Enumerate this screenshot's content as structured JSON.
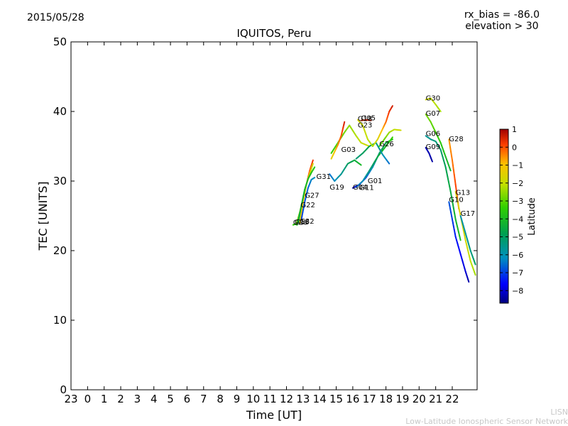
{
  "header": {
    "date": "2015/05/28",
    "rx_bias": "rx_bias = -86.0",
    "elevation": "elevation > 30"
  },
  "footer": {
    "org_short": "LISN",
    "org_long": "Low-Latitude Ionospheric Sensor Network"
  },
  "chart_data": {
    "type": "scatter",
    "title": "IQUITOS, Peru",
    "xlabel": "Time [UT]",
    "ylabel": "TEC [UNITS]",
    "xlim": [
      23,
      47.5
    ],
    "ylim": [
      0,
      50
    ],
    "xticks": [
      23,
      24,
      25,
      26,
      27,
      28,
      29,
      30,
      31,
      32,
      33,
      34,
      35,
      36,
      37,
      38,
      39,
      40,
      41,
      42,
      43,
      44,
      45,
      46
    ],
    "xtick_labels": [
      "23",
      "0",
      "1",
      "2",
      "3",
      "4",
      "5",
      "6",
      "7",
      "8",
      "9",
      "10",
      "11",
      "12",
      "13",
      "14",
      "15",
      "16",
      "17",
      "18",
      "19",
      "20",
      "21",
      "22"
    ],
    "yticks": [
      0,
      10,
      20,
      30,
      40,
      50
    ],
    "grid": false,
    "colorbar": {
      "label": "Latitude",
      "min": -8.7,
      "max": 1.0,
      "ticks": [
        1,
        0,
        -1,
        -2,
        -3,
        -4,
        -5,
        -6,
        -7,
        -8
      ],
      "tick_labels": [
        "1",
        "0",
        "−1",
        "−2",
        "−3",
        "−4",
        "−5",
        "−6",
        "−7",
        "−8"
      ]
    },
    "series": [
      {
        "name": "G20",
        "label_at": [
          36.4,
          23.7
        ],
        "points": [
          [
            36.4,
            23.7,
            -3.5
          ],
          [
            36.5,
            23.8,
            -3.5
          ],
          [
            36.6,
            23.8,
            -3.6
          ]
        ]
      },
      {
        "name": "G16",
        "label_at": [
          36.5,
          23.8
        ],
        "points": [
          [
            36.55,
            23.8,
            -4.0
          ],
          [
            36.65,
            23.7,
            -4.1
          ]
        ]
      },
      {
        "name": "G32",
        "label_at": [
          36.8,
          23.9
        ],
        "points": [
          [
            36.8,
            24.0,
            -1.5
          ],
          [
            36.9,
            25.5,
            -1.2
          ],
          [
            37.0,
            27.0,
            -0.9
          ],
          [
            37.2,
            29.5,
            -0.5
          ],
          [
            37.4,
            31.5,
            -0.1
          ],
          [
            37.6,
            33.0,
            0.3
          ]
        ]
      },
      {
        "name": "G22",
        "label_at": [
          36.85,
          26.2
        ],
        "points": [
          [
            36.6,
            23.8,
            -3.0
          ],
          [
            36.8,
            25.5,
            -2.8
          ],
          [
            37.0,
            27.5,
            -2.5
          ],
          [
            37.2,
            29.5,
            -2.2
          ],
          [
            37.4,
            31.0,
            -2.0
          ],
          [
            37.6,
            32.5,
            -1.8
          ]
        ]
      },
      {
        "name": "G27",
        "label_at": [
          37.1,
          27.6
        ],
        "points": [
          [
            36.7,
            24.0,
            -4.6
          ],
          [
            36.9,
            26.5,
            -4.4
          ],
          [
            37.1,
            28.8,
            -4.2
          ],
          [
            37.3,
            30.3,
            -4.0
          ],
          [
            37.5,
            31.2,
            -3.8
          ],
          [
            37.7,
            32.0,
            -3.6
          ]
        ]
      },
      {
        "name": "G31",
        "label_at": [
          37.8,
          30.3
        ],
        "points": [
          [
            36.9,
            24.5,
            -7.0
          ],
          [
            37.1,
            27.0,
            -6.8
          ],
          [
            37.3,
            29.0,
            -6.6
          ],
          [
            37.5,
            30.2,
            -6.3
          ],
          [
            37.7,
            30.5,
            -6.1
          ]
        ]
      },
      {
        "name": "G19",
        "label_at": [
          38.6,
          28.8
        ],
        "points": [
          [
            38.6,
            31.0,
            -6.5
          ],
          [
            38.9,
            30.0,
            -6.2
          ],
          [
            39.3,
            31.0,
            -5.6
          ],
          [
            39.7,
            32.5,
            -5.0
          ],
          [
            40.1,
            33.0,
            -4.5
          ],
          [
            40.5,
            32.3,
            -4.0
          ]
        ]
      },
      {
        "name": "G03",
        "label_at": [
          39.3,
          34.2
        ],
        "points": [
          [
            38.7,
            34.0,
            -3.4
          ],
          [
            39.1,
            35.5,
            -3.1
          ],
          [
            39.5,
            37.0,
            -2.8
          ],
          [
            39.8,
            38.0,
            -2.5
          ],
          [
            40.2,
            36.5,
            -2.2
          ],
          [
            40.5,
            35.5,
            -2.0
          ],
          [
            41.0,
            35.0,
            -1.8
          ]
        ]
      },
      {
        "name": "G23",
        "label_at": [
          40.3,
          37.7
        ],
        "points": [
          [
            38.7,
            33.2,
            -1.5
          ],
          [
            38.9,
            34.2,
            -1.0
          ],
          [
            39.1,
            35.2,
            -0.5
          ],
          [
            39.3,
            36.5,
            0.0
          ],
          [
            39.5,
            38.5,
            0.6
          ]
        ]
      },
      {
        "name": "G04",
        "label_at": [
          40.0,
          28.8
        ],
        "points": [
          [
            40.0,
            29.0,
            -8.2
          ],
          [
            40.4,
            29.5,
            -7.6
          ],
          [
            40.8,
            30.5,
            -6.8
          ],
          [
            41.2,
            32.0,
            -6.0
          ],
          [
            41.6,
            34.0,
            -5.2
          ],
          [
            42.0,
            35.5,
            -4.5
          ],
          [
            42.4,
            36.0,
            -3.6
          ]
        ]
      },
      {
        "name": "G11",
        "label_at": [
          40.4,
          28.7
        ],
        "points": [
          [
            40.2,
            29.1,
            -6.6
          ],
          [
            40.6,
            30.0,
            -6.0
          ],
          [
            41.0,
            31.5,
            -5.3
          ],
          [
            41.5,
            33.5,
            -4.6
          ],
          [
            42.0,
            35.0,
            -3.9
          ],
          [
            42.4,
            36.3,
            -3.2
          ]
        ]
      },
      {
        "name": "G01",
        "label_at": [
          40.9,
          29.7
        ],
        "points": [
          [
            40.2,
            33.2,
            -5.3
          ],
          [
            40.6,
            34.0,
            -5.0
          ],
          [
            41.0,
            35.0,
            -4.7
          ],
          [
            41.4,
            35.5,
            -5.3
          ],
          [
            41.8,
            33.8,
            -6.0
          ],
          [
            42.2,
            32.5,
            -6.6
          ]
        ]
      },
      {
        "name": "G18",
        "label_at": [
          40.3,
          38.6
        ],
        "points": [
          [
            40.3,
            38.8,
            -1.7
          ],
          [
            40.6,
            38.0,
            -1.9
          ],
          [
            40.9,
            36.0,
            -2.1
          ],
          [
            41.2,
            35.0,
            -2.3
          ],
          [
            41.5,
            36.0,
            -1.6
          ],
          [
            41.8,
            37.5,
            -0.8
          ],
          [
            42.0,
            38.5,
            -0.2
          ],
          [
            42.2,
            40.0,
            0.3
          ],
          [
            42.4,
            40.8,
            0.6
          ]
        ]
      },
      {
        "name": "G05",
        "label_at": [
          40.5,
          38.7
        ],
        "points": [
          [
            40.5,
            38.7,
            0.5
          ],
          [
            40.8,
            38.8,
            0.5
          ],
          [
            41.1,
            38.7,
            0.6
          ]
        ]
      },
      {
        "name": "G26",
        "label_at": [
          41.6,
          35.0
        ],
        "points": [
          [
            41.6,
            35.0,
            -3.2
          ],
          [
            41.9,
            36.0,
            -2.8
          ],
          [
            42.2,
            37.0,
            -2.4
          ],
          [
            42.5,
            37.4,
            -2.1
          ],
          [
            42.9,
            37.3,
            -1.8
          ]
        ]
      },
      {
        "name": "G30",
        "label_at": [
          44.4,
          41.6
        ],
        "points": [
          [
            44.4,
            41.7,
            -1.8
          ],
          [
            44.7,
            41.9,
            -2.0
          ],
          [
            45.0,
            41.0,
            -2.2
          ],
          [
            45.3,
            40.0,
            -2.4
          ]
        ]
      },
      {
        "name": "G07",
        "label_at": [
          44.4,
          39.4
        ],
        "points": [
          [
            44.4,
            39.6,
            -2.7
          ],
          [
            44.7,
            38.5,
            -2.9
          ],
          [
            45.0,
            37.0,
            -3.2
          ],
          [
            45.3,
            35.5,
            -3.6
          ],
          [
            45.6,
            33.5,
            -4.0
          ],
          [
            45.9,
            31.5,
            -4.3
          ]
        ]
      },
      {
        "name": "G09",
        "label_at": [
          44.4,
          34.6
        ],
        "points": [
          [
            44.4,
            34.8,
            -8.2
          ],
          [
            44.6,
            34.0,
            -8.3
          ],
          [
            44.8,
            32.8,
            -8.4
          ]
        ]
      },
      {
        "name": "G06",
        "label_at": [
          44.4,
          36.5
        ],
        "points": [
          [
            44.4,
            36.5,
            -5.7
          ],
          [
            44.7,
            36.0,
            -5.5
          ],
          [
            45.0,
            35.7,
            -5.3
          ],
          [
            45.3,
            34.5,
            -5.1
          ],
          [
            45.6,
            32.0,
            -4.8
          ],
          [
            45.9,
            28.5,
            -4.5
          ],
          [
            46.2,
            24.5,
            -4.2
          ],
          [
            46.5,
            21.5,
            -3.9
          ]
        ]
      },
      {
        "name": "G28",
        "label_at": [
          45.8,
          35.7
        ],
        "points": [
          [
            45.8,
            36.0,
            -0.6
          ],
          [
            46.0,
            33.0,
            -0.3
          ],
          [
            46.2,
            29.5,
            0.1
          ],
          [
            46.4,
            26.0,
            0.3
          ]
        ]
      },
      {
        "name": "G13",
        "label_at": [
          46.2,
          28.0
        ],
        "points": [
          [
            46.2,
            28.5,
            -1.4
          ],
          [
            46.5,
            25.0,
            -1.6
          ],
          [
            46.8,
            21.5,
            -1.8
          ],
          [
            47.1,
            18.5,
            -2.1
          ],
          [
            47.4,
            16.5,
            -2.4
          ]
        ]
      },
      {
        "name": "G10",
        "label_at": [
          45.8,
          27.0
        ],
        "points": [
          [
            45.8,
            27.0,
            -6.8
          ],
          [
            46.0,
            24.5,
            -7.1
          ],
          [
            46.2,
            22.0,
            -7.4
          ],
          [
            46.5,
            19.5,
            -7.7
          ],
          [
            46.8,
            17.0,
            -8.0
          ],
          [
            47.0,
            15.5,
            -8.4
          ]
        ]
      },
      {
        "name": "G17",
        "label_at": [
          46.5,
          25.0
        ],
        "points": [
          [
            46.5,
            25.0,
            -6.0
          ],
          [
            46.8,
            22.5,
            -5.7
          ],
          [
            47.1,
            20.0,
            -5.4
          ],
          [
            47.4,
            18.0,
            -5.0
          ]
        ]
      }
    ]
  }
}
